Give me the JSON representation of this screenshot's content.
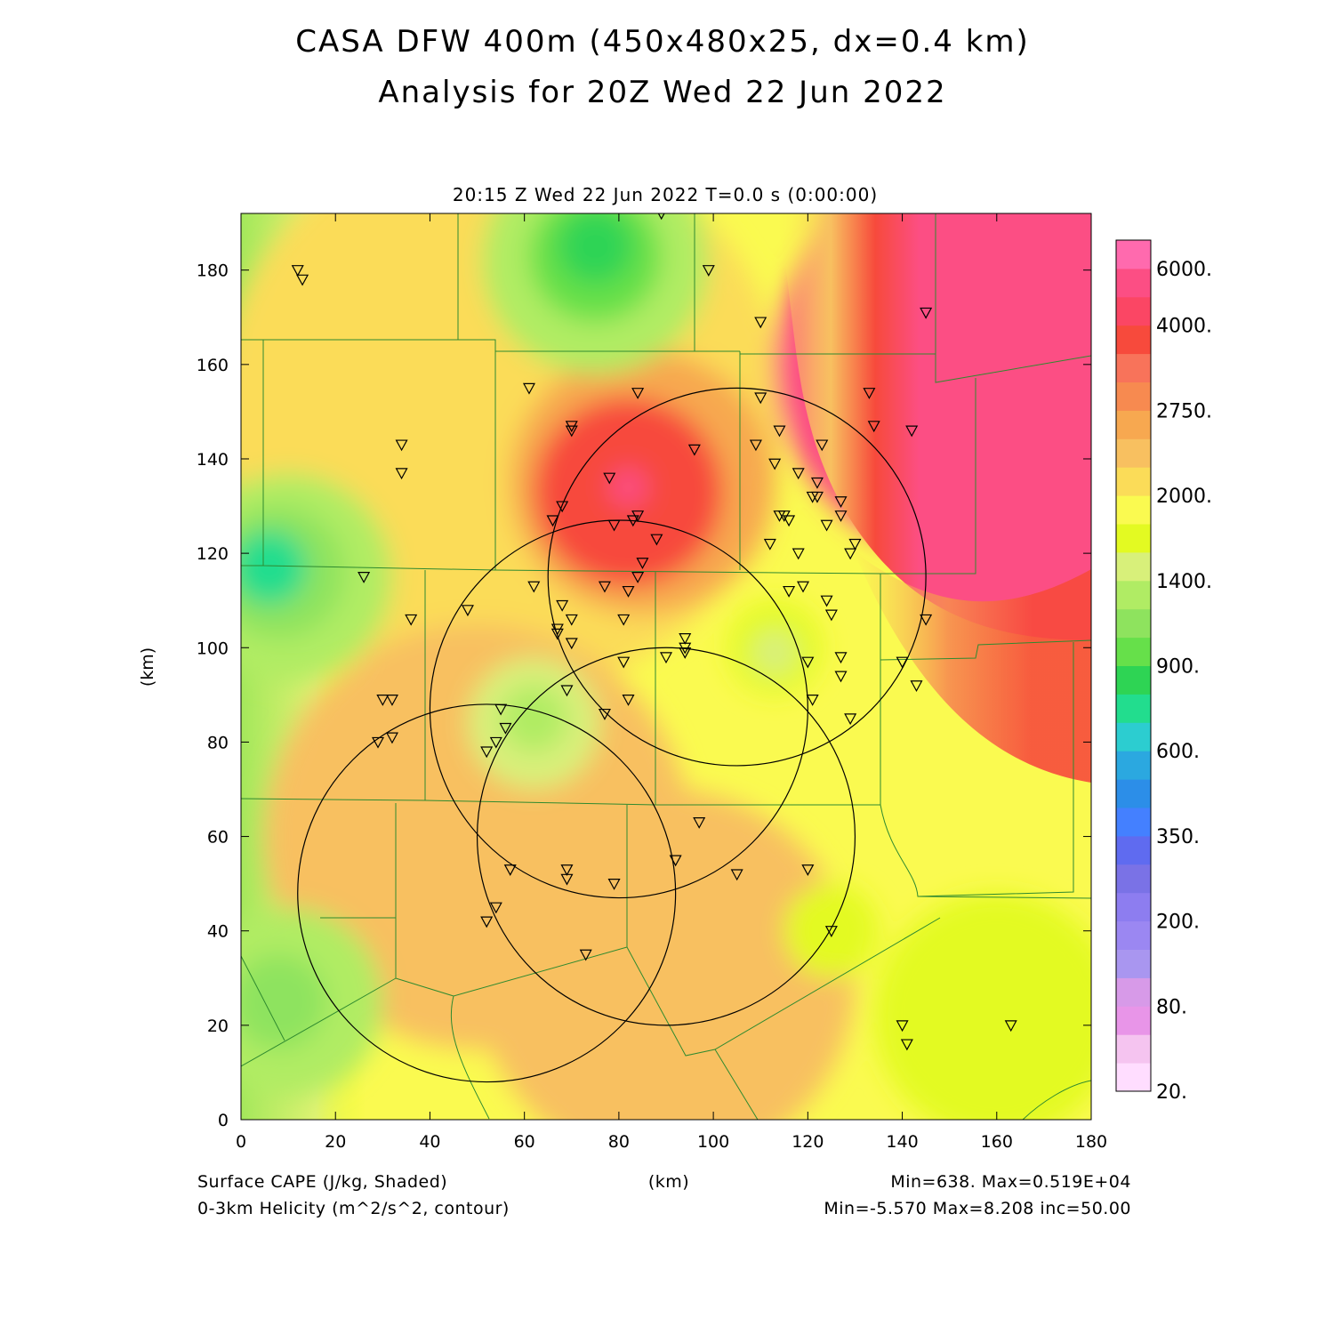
{
  "figure": {
    "title": "CASA DFW 400m (450x480x25, dx=0.4 km)",
    "subtitle": "Analysis for 20Z Wed 22 Jun 2022",
    "timestamp": "20:15 Z Wed 22 Jun 2022    T=0.0 s (0:00:00)",
    "footer_left_1": "Surface CAPE (J/kg, Shaded)",
    "footer_left_2": "0-3km Helicity (m^2/s^2, contour)",
    "footer_center": "(km)",
    "footer_right_1": "Min=638.  Max=0.519E+04",
    "footer_right_2": "Min=-5.570 Max=8.208 inc=50.00"
  },
  "chart_data": {
    "type": "heatmap",
    "title": "CASA DFW 400m (450x480x25, dx=0.4 km)",
    "subtitle": "Analysis for 20Z Wed 22 Jun 2022",
    "xlabel": "(km)",
    "ylabel": "(km)",
    "xlim": [
      0,
      180
    ],
    "ylim": [
      0,
      192
    ],
    "x_ticks": [
      0,
      20,
      40,
      60,
      80,
      100,
      120,
      140,
      160,
      180
    ],
    "y_ticks": [
      0,
      20,
      40,
      60,
      80,
      100,
      120,
      140,
      160,
      180
    ],
    "x_tick_labels": [
      "0",
      "20",
      "40",
      "60",
      "80",
      "100",
      "120",
      "140",
      "160",
      "180"
    ],
    "y_tick_labels": [
      "0",
      "20",
      "40",
      "60",
      "80",
      "100",
      "120",
      "140",
      "160",
      "180"
    ],
    "shaded_field": "Surface CAPE (J/kg, Shaded)",
    "contour_field": "0-3km Helicity (m^2/s^2, contour)",
    "shaded_min": 638,
    "shaded_max": 5190,
    "contour_min": -5.57,
    "contour_max": 8.208,
    "contour_inc": 50.0,
    "colorbar": {
      "colors": [
        "#ffddff",
        "#f5c4f0",
        "#e895e8",
        "#d79ae8",
        "#a996f0",
        "#9b87f2",
        "#8d7df0",
        "#7a72e6",
        "#5f6bf0",
        "#4480ff",
        "#2c8ee8",
        "#2ba8e0",
        "#2ccdd0",
        "#22dd8e",
        "#2ed454",
        "#66e04a",
        "#8ee35e",
        "#b0ec64",
        "#d8f07a",
        "#e3fa22",
        "#fafa50",
        "#fbdc58",
        "#f8c060",
        "#f7a850",
        "#f78a50",
        "#f8735a",
        "#f74a3c",
        "#fb4664",
        "#fc4e84",
        "#ff6aae"
      ],
      "labels": [
        {
          "value": "20.",
          "index": 0
        },
        {
          "value": "80.",
          "index": 3
        },
        {
          "value": "200.",
          "index": 6
        },
        {
          "value": "350.",
          "index": 9
        },
        {
          "value": "600.",
          "index": 12
        },
        {
          "value": "900.",
          "index": 15
        },
        {
          "value": "1400.",
          "index": 18
        },
        {
          "value": "2000.",
          "index": 21
        },
        {
          "value": "2750.",
          "index": 24
        },
        {
          "value": "4000.",
          "index": 27
        },
        {
          "value": "6000.",
          "index": 29
        }
      ]
    },
    "field_blobs": [
      {
        "x": 55,
        "y": 150,
        "r": 60,
        "color": "#fbdc58"
      },
      {
        "x": 50,
        "y": 60,
        "r": 45,
        "color": "#f8c060"
      },
      {
        "x": 90,
        "y": 30,
        "r": 40,
        "color": "#f8c060"
      },
      {
        "x": 85,
        "y": 135,
        "r": 28,
        "color": "#f7a850"
      },
      {
        "x": 82,
        "y": 133,
        "r": 20,
        "color": "#f74a3c"
      },
      {
        "x": 82,
        "y": 134,
        "r": 4,
        "color": "#fc4e84"
      },
      {
        "x": 62,
        "y": 84,
        "r": 14,
        "color": "#d8f07a"
      },
      {
        "x": 62,
        "y": 85,
        "r": 7,
        "color": "#b0ec64"
      },
      {
        "x": 113,
        "y": 100,
        "r": 10,
        "color": "#e3fa22"
      },
      {
        "x": 113,
        "y": 99,
        "r": 5,
        "color": "#d8f07a"
      },
      {
        "x": 10,
        "y": 115,
        "r": 22,
        "color": "#b0ec64"
      },
      {
        "x": 8,
        "y": 116,
        "r": 14,
        "color": "#8ee35e"
      },
      {
        "x": 6,
        "y": 117,
        "r": 8,
        "color": "#22dd8e"
      },
      {
        "x": 75,
        "y": 182,
        "r": 24,
        "color": "#b0ec64"
      },
      {
        "x": 75,
        "y": 183,
        "r": 14,
        "color": "#66e04a"
      },
      {
        "x": 75,
        "y": 185,
        "r": 8,
        "color": "#2ed454"
      },
      {
        "x": 10,
        "y": 25,
        "r": 20,
        "color": "#b0ec64"
      },
      {
        "x": 8,
        "y": 25,
        "r": 10,
        "color": "#8ee35e"
      },
      {
        "x": 160,
        "y": 22,
        "r": 26,
        "color": "#e3fa22"
      },
      {
        "x": 125,
        "y": 40,
        "r": 10,
        "color": "#e3fa22"
      },
      {
        "x": 155,
        "y": 160,
        "r": 42,
        "color": "#fc4e84"
      },
      {
        "x": 157,
        "y": 160,
        "r": 12,
        "color": "#ff6aae"
      }
    ],
    "circles": [
      {
        "cx": 52,
        "cy": 48,
        "r": 40
      },
      {
        "cx": 80,
        "cy": 87,
        "r": 40
      },
      {
        "cx": 105,
        "cy": 115,
        "r": 40
      },
      {
        "cx": 90,
        "cy": 60,
        "r": 40
      }
    ],
    "stations": [
      [
        12,
        180
      ],
      [
        13,
        178
      ],
      [
        34,
        143
      ],
      [
        34,
        137
      ],
      [
        26,
        115
      ],
      [
        36,
        106
      ],
      [
        48,
        108
      ],
      [
        30,
        89
      ],
      [
        32,
        89
      ],
      [
        29,
        80
      ],
      [
        32,
        81
      ],
      [
        55,
        87
      ],
      [
        56,
        83
      ],
      [
        52,
        78
      ],
      [
        54,
        80
      ],
      [
        57,
        53
      ],
      [
        69,
        53
      ],
      [
        69,
        51
      ],
      [
        79,
        50
      ],
      [
        52,
        42
      ],
      [
        54,
        45
      ],
      [
        73,
        35
      ],
      [
        61,
        155
      ],
      [
        70,
        147
      ],
      [
        70,
        146
      ],
      [
        84,
        154
      ],
      [
        96,
        142
      ],
      [
        88,
        123
      ],
      [
        89,
        192
      ],
      [
        99,
        180
      ],
      [
        78,
        136
      ],
      [
        66,
        127
      ],
      [
        68,
        130
      ],
      [
        79,
        126
      ],
      [
        83,
        127
      ],
      [
        84,
        128
      ],
      [
        85,
        118
      ],
      [
        84,
        115
      ],
      [
        62,
        113
      ],
      [
        68,
        109
      ],
      [
        77,
        113
      ],
      [
        82,
        112
      ],
      [
        67,
        104
      ],
      [
        67,
        103
      ],
      [
        70,
        106
      ],
      [
        70,
        101
      ],
      [
        81,
        106
      ],
      [
        94,
        102
      ],
      [
        94,
        100
      ],
      [
        94,
        99
      ],
      [
        90,
        98
      ],
      [
        81,
        97
      ],
      [
        69,
        91
      ],
      [
        77,
        86
      ],
      [
        82,
        89
      ],
      [
        97,
        63
      ],
      [
        92,
        55
      ],
      [
        105,
        52
      ],
      [
        110,
        153
      ],
      [
        109,
        143
      ],
      [
        113,
        139
      ],
      [
        114,
        146
      ],
      [
        112,
        122
      ],
      [
        114,
        128
      ],
      [
        115,
        128
      ],
      [
        116,
        127
      ],
      [
        118,
        137
      ],
      [
        118,
        120
      ],
      [
        119,
        113
      ],
      [
        116,
        112
      ],
      [
        122,
        135
      ],
      [
        121,
        132
      ],
      [
        122,
        132
      ],
      [
        123,
        143
      ],
      [
        124,
        126
      ],
      [
        127,
        131
      ],
      [
        127,
        128
      ],
      [
        129,
        120
      ],
      [
        130,
        122
      ],
      [
        124,
        110
      ],
      [
        125,
        107
      ],
      [
        127,
        98
      ],
      [
        127,
        94
      ],
      [
        120,
        97
      ],
      [
        121,
        89
      ],
      [
        129,
        85
      ],
      [
        133,
        154
      ],
      [
        134,
        147
      ],
      [
        142,
        146
      ],
      [
        145,
        171
      ],
      [
        145,
        106
      ],
      [
        140,
        97
      ],
      [
        143,
        92
      ],
      [
        120,
        53
      ],
      [
        125,
        40
      ],
      [
        140,
        20
      ],
      [
        141,
        16
      ],
      [
        163,
        20
      ],
      [
        110,
        169
      ]
    ]
  }
}
